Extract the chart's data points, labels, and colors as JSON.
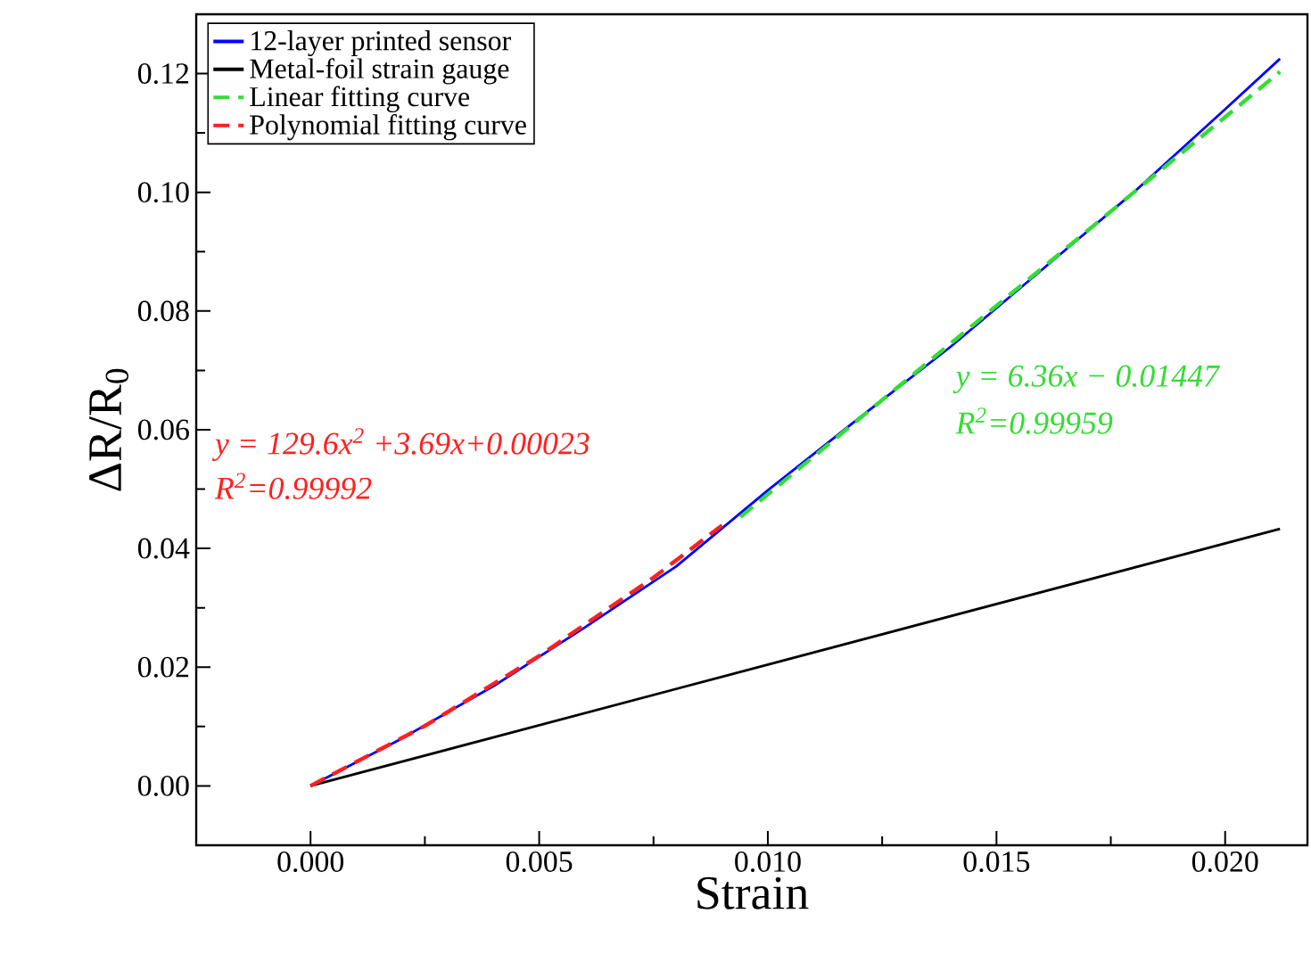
{
  "chart_data": {
    "type": "line",
    "xlabel": "Strain",
    "ylabel": "ΔR/R$_{0}$",
    "xlim": [
      -0.0025,
      0.0218
    ],
    "ylim": [
      -0.01,
      0.13
    ],
    "xticks": [
      {
        "value": 0,
        "label": "0.000"
      },
      {
        "value": 0.005,
        "label": "0.005"
      },
      {
        "value": 0.01,
        "label": "0.010"
      },
      {
        "value": 0.015,
        "label": "0.015"
      },
      {
        "value": 0.02,
        "label": "0.020"
      }
    ],
    "yticks": [
      {
        "value": 0,
        "label": "0.00"
      },
      {
        "value": 0.02,
        "label": "0.02"
      },
      {
        "value": 0.04,
        "label": "0.04"
      },
      {
        "value": 0.06,
        "label": "0.06"
      },
      {
        "value": 0.08,
        "label": "0.08"
      },
      {
        "value": 0.1,
        "label": "0.10"
      },
      {
        "value": 0.12,
        "label": "0.12"
      }
    ],
    "legend": "top left",
    "grid": false,
    "series": [
      {
        "name": "12-layer printed sensor",
        "color": "#0000ff",
        "line_style": "solid",
        "x": [
          0,
          0.002,
          0.004,
          0.006,
          0.008,
          0.01,
          0.012,
          0.014,
          0.016,
          0.018,
          0.02,
          0.0212
        ],
        "values": [
          0,
          0.008,
          0.0168,
          0.0267,
          0.037,
          0.0498,
          0.062,
          0.074,
          0.087,
          0.1,
          0.114,
          0.1225
        ]
      },
      {
        "name": "Metal-foil strain gauge",
        "color": "#000000",
        "line_style": "solid",
        "x": [
          0,
          0.0212
        ],
        "values": [
          0,
          0.0433
        ]
      },
      {
        "name": "Linear fitting curve",
        "color": "#33dd33",
        "line_style": "dashed",
        "x": [
          0.0094,
          0.0212
        ],
        "values": [
          0.0453,
          0.1203
        ]
      },
      {
        "name": "Polynomial fitting curve",
        "color": "#ff2020",
        "line_style": "dashed",
        "x": [
          0,
          0.0025,
          0.005,
          0.0075,
          0.009
        ],
        "values": [
          0,
          0.0101,
          0.0219,
          0.0351,
          0.0439
        ]
      }
    ],
    "annotations": [
      {
        "text": "y = 129.6x$^{2}$ +3.69x+0.00023"
      },
      {
        "text": "R$^{2}$=0.99992"
      },
      {
        "text": "y = 6.36x − 0.01447"
      },
      {
        "text": "R$^{2}$=0.99959"
      }
    ]
  }
}
